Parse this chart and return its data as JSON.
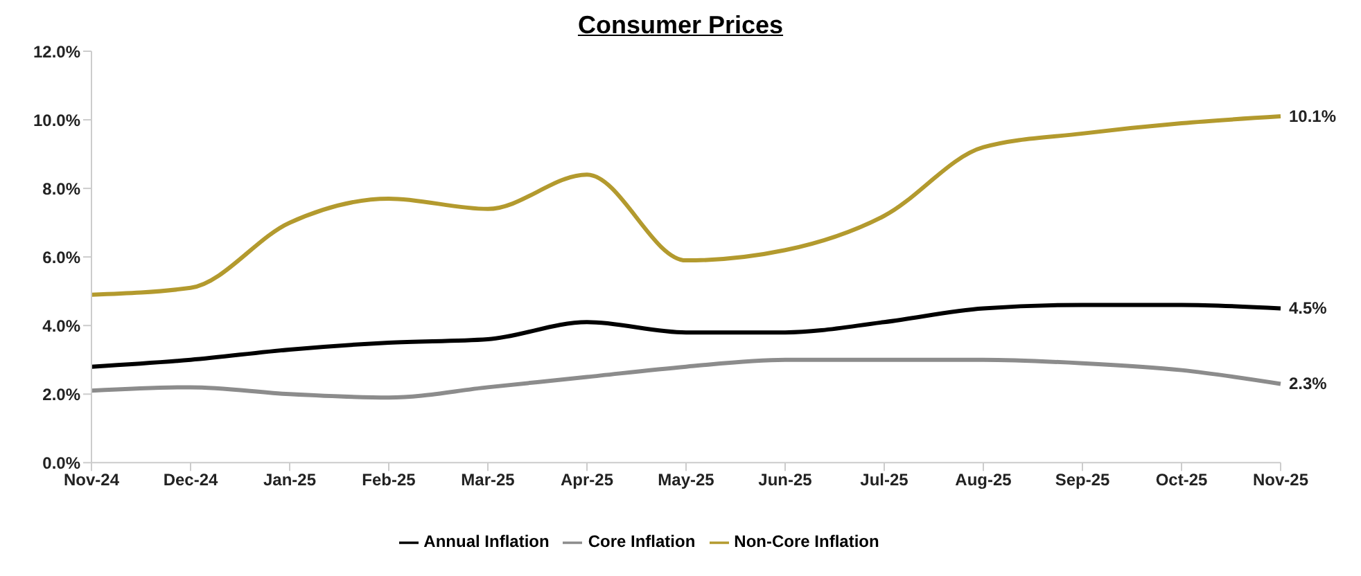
{
  "chart_data": {
    "type": "line",
    "title": "Consumer Prices",
    "categories": [
      "Nov-24",
      "Dec-24",
      "Jan-25",
      "Feb-25",
      "Mar-25",
      "Apr-25",
      "May-25",
      "Jun-25",
      "Jul-25",
      "Aug-25",
      "Sep-25",
      "Oct-25",
      "Nov-25"
    ],
    "series": [
      {
        "name": "Annual Inflation",
        "color": "#000000",
        "values": [
          2.8,
          3.0,
          3.3,
          3.5,
          3.6,
          4.1,
          3.8,
          3.8,
          4.1,
          4.5,
          4.6,
          4.6,
          4.5
        ],
        "value_labels": [
          null,
          null,
          null,
          null,
          null,
          null,
          null,
          null,
          null,
          null,
          null,
          null,
          "4.5%"
        ]
      },
      {
        "name": "Core Inflation",
        "color": "#8c8c8c",
        "values": [
          2.1,
          2.2,
          2.0,
          1.9,
          2.2,
          2.5,
          2.8,
          3.0,
          3.0,
          3.0,
          2.9,
          2.7,
          2.3
        ],
        "value_labels": [
          null,
          null,
          null,
          null,
          null,
          null,
          null,
          null,
          null,
          null,
          null,
          null,
          "2.3%"
        ]
      },
      {
        "name": "Non-Core Inflation",
        "color": "#b39a2e",
        "values": [
          4.9,
          5.1,
          7.0,
          7.7,
          7.4,
          8.4,
          5.9,
          6.2,
          7.2,
          9.2,
          9.6,
          9.9,
          10.1
        ],
        "value_labels": [
          null,
          null,
          null,
          null,
          null,
          null,
          null,
          null,
          null,
          null,
          null,
          null,
          "10.1%"
        ]
      }
    ],
    "ylim": [
      0,
      12
    ],
    "yticks": [
      {
        "value": 0,
        "label": "0.0%"
      },
      {
        "value": 2,
        "label": "2.0%"
      },
      {
        "value": 4,
        "label": "4.0%"
      },
      {
        "value": 6,
        "label": "6.0%"
      },
      {
        "value": 8,
        "label": "8.0%"
      },
      {
        "value": 10,
        "label": "10.0%"
      },
      {
        "value": 12,
        "label": "12.0%"
      }
    ],
    "legend": "bottom",
    "marker": "none",
    "line_style": "solid"
  }
}
